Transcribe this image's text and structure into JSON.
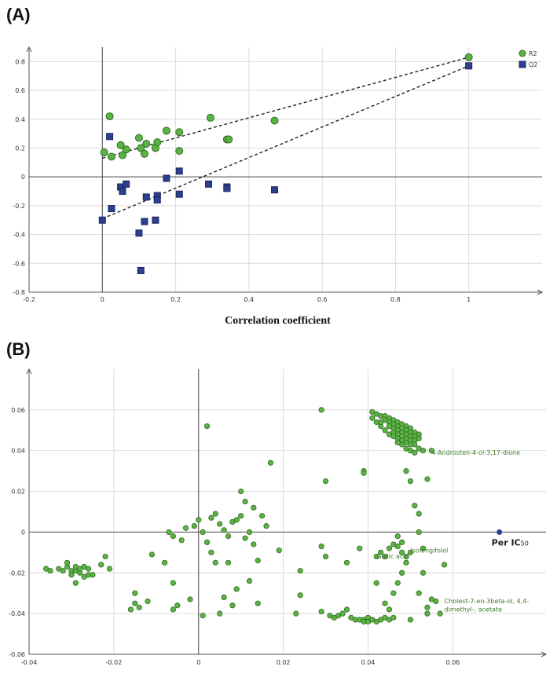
{
  "chart_data": [
    {
      "panel": "(A)",
      "type": "scatter",
      "title": "",
      "xlabel": "Correlation coefficient",
      "ylabel": "",
      "xlim": [
        -0.2,
        1.2
      ],
      "ylim": [
        -0.8,
        0.9
      ],
      "xticks": [
        -0.2,
        0,
        0.2,
        0.4,
        0.6,
        0.8,
        1
      ],
      "xtick_labels": [
        "-0.2",
        "0",
        "0.2",
        "0.4",
        "0.6",
        "0.8",
        "1"
      ],
      "yticks": [
        -0.8,
        -0.6,
        -0.4,
        -0.2,
        0,
        0.2,
        0.4,
        0.6,
        0.8
      ],
      "ytick_labels": [
        "-0.8",
        "-0.6",
        "-0.4",
        "-0.2",
        "0",
        "0.2",
        "0.4",
        "0.6",
        "0.8"
      ],
      "grid": true,
      "legend_position": "top-right",
      "series": [
        {
          "name": "R2",
          "marker": "circle",
          "color": "#5cb345",
          "points": [
            [
              0.005,
              0.17
            ],
            [
              0.02,
              0.42
            ],
            [
              0.025,
              0.14
            ],
            [
              0.05,
              0.22
            ],
            [
              0.055,
              0.15
            ],
            [
              0.065,
              0.19
            ],
            [
              0.1,
              0.27
            ],
            [
              0.105,
              0.2
            ],
            [
              0.115,
              0.16
            ],
            [
              0.12,
              0.23
            ],
            [
              0.145,
              0.2
            ],
            [
              0.15,
              0.24
            ],
            [
              0.175,
              0.32
            ],
            [
              0.21,
              0.31
            ],
            [
              0.21,
              0.18
            ],
            [
              0.295,
              0.41
            ],
            [
              0.34,
              0.26
            ],
            [
              0.345,
              0.26
            ],
            [
              0.47,
              0.39
            ],
            [
              1.0,
              0.83
            ]
          ],
          "fit_line": [
            [
              0,
              0.13
            ],
            [
              1,
              0.83
            ]
          ]
        },
        {
          "name": "Q2",
          "marker": "square",
          "color": "#2e3f8f",
          "points": [
            [
              0.0,
              -0.3
            ],
            [
              0.02,
              0.28
            ],
            [
              0.025,
              -0.22
            ],
            [
              0.05,
              -0.07
            ],
            [
              0.055,
              -0.1
            ],
            [
              0.065,
              -0.05
            ],
            [
              0.1,
              -0.39
            ],
            [
              0.105,
              -0.65
            ],
            [
              0.115,
              -0.31
            ],
            [
              0.12,
              -0.14
            ],
            [
              0.145,
              -0.3
            ],
            [
              0.15,
              -0.13
            ],
            [
              0.15,
              -0.16
            ],
            [
              0.175,
              -0.01
            ],
            [
              0.21,
              0.04
            ],
            [
              0.21,
              -0.12
            ],
            [
              0.29,
              -0.05
            ],
            [
              0.34,
              -0.07
            ],
            [
              0.34,
              -0.08
            ],
            [
              0.47,
              -0.09
            ],
            [
              1.0,
              0.77
            ]
          ],
          "fit_line": [
            [
              0,
              -0.29
            ],
            [
              1,
              0.77
            ]
          ]
        }
      ]
    },
    {
      "panel": "(B)",
      "type": "scatter",
      "title": "",
      "xlabel": "",
      "ylabel": "",
      "xlim": [
        -0.04,
        0.082
      ],
      "ylim": [
        -0.06,
        0.08
      ],
      "xticks": [
        -0.04,
        -0.02,
        0,
        0.02,
        0.04,
        0.06
      ],
      "xtick_labels": [
        "-0.04",
        "-0.02",
        "0",
        "0.02",
        "0.04",
        "0.06"
      ],
      "yticks": [
        -0.06,
        -0.04,
        -0.02,
        0,
        0.02,
        0.04,
        0.06
      ],
      "ytick_labels": [
        "-0.06",
        "-0.04",
        "-0.02",
        "0",
        "0.02",
        "0.04",
        "0.06"
      ],
      "grid": true,
      "series": [
        {
          "name": "compounds",
          "marker": "circle",
          "color": "#5cb345",
          "points": [
            [
              -0.036,
              -0.018
            ],
            [
              -0.035,
              -0.019
            ],
            [
              -0.033,
              -0.018
            ],
            [
              -0.032,
              -0.019
            ],
            [
              -0.031,
              -0.017
            ],
            [
              -0.031,
              -0.015
            ],
            [
              -0.03,
              -0.019
            ],
            [
              -0.03,
              -0.021
            ],
            [
              -0.029,
              -0.019
            ],
            [
              -0.028,
              -0.02
            ],
            [
              -0.028,
              -0.018
            ],
            [
              -0.027,
              -0.017
            ],
            [
              -0.026,
              -0.018
            ],
            [
              -0.029,
              -0.025
            ],
            [
              -0.027,
              -0.022
            ],
            [
              -0.025,
              -0.021
            ],
            [
              -0.026,
              -0.021
            ],
            [
              -0.023,
              -0.016
            ],
            [
              -0.021,
              -0.018
            ],
            [
              -0.022,
              -0.012
            ],
            [
              -0.029,
              -0.017
            ],
            [
              -0.015,
              -0.03
            ],
            [
              -0.015,
              -0.035
            ],
            [
              -0.014,
              -0.037
            ],
            [
              -0.016,
              -0.038
            ],
            [
              -0.012,
              -0.034
            ],
            [
              -0.011,
              -0.011
            ],
            [
              -0.007,
              0.0
            ],
            [
              -0.006,
              -0.002
            ],
            [
              -0.004,
              -0.004
            ],
            [
              -0.003,
              0.002
            ],
            [
              -0.006,
              -0.038
            ],
            [
              -0.005,
              -0.036
            ],
            [
              -0.002,
              -0.033
            ],
            [
              -0.006,
              -0.025
            ],
            [
              -0.008,
              -0.015
            ],
            [
              -0.001,
              0.003
            ],
            [
              0.0,
              0.006
            ],
            [
              0.001,
              0.0
            ],
            [
              0.002,
              -0.005
            ],
            [
              0.003,
              -0.01
            ],
            [
              0.001,
              -0.041
            ],
            [
              0.002,
              0.052
            ],
            [
              0.003,
              0.007
            ],
            [
              0.004,
              0.009
            ],
            [
              0.005,
              0.004
            ],
            [
              0.006,
              0.001
            ],
            [
              0.007,
              -0.002
            ],
            [
              0.008,
              0.005
            ],
            [
              0.009,
              0.006
            ],
            [
              0.01,
              0.008
            ],
            [
              0.011,
              -0.003
            ],
            [
              0.012,
              0.0
            ],
            [
              0.013,
              -0.006
            ],
            [
              0.014,
              -0.014
            ],
            [
              0.012,
              -0.024
            ],
            [
              0.01,
              0.02
            ],
            [
              0.011,
              0.015
            ],
            [
              0.013,
              0.012
            ],
            [
              0.015,
              0.008
            ],
            [
              0.016,
              0.003
            ],
            [
              0.017,
              0.034
            ],
            [
              0.019,
              -0.009
            ],
            [
              0.014,
              -0.035
            ],
            [
              0.009,
              -0.028
            ],
            [
              0.008,
              -0.036
            ],
            [
              0.006,
              -0.032
            ],
            [
              0.005,
              -0.04
            ],
            [
              0.004,
              -0.015
            ],
            [
              0.007,
              -0.015
            ],
            [
              0.029,
              0.06
            ],
            [
              0.03,
              0.025
            ],
            [
              0.023,
              -0.04
            ],
            [
              0.024,
              -0.031
            ],
            [
              0.024,
              -0.019
            ],
            [
              0.029,
              -0.039
            ],
            [
              0.029,
              -0.007
            ],
            [
              0.03,
              -0.012
            ],
            [
              0.031,
              -0.041
            ],
            [
              0.032,
              -0.042
            ],
            [
              0.033,
              -0.041
            ],
            [
              0.034,
              -0.04
            ],
            [
              0.035,
              -0.038
            ],
            [
              0.035,
              -0.015
            ],
            [
              0.036,
              -0.042
            ],
            [
              0.037,
              -0.043
            ],
            [
              0.038,
              -0.043
            ],
            [
              0.039,
              -0.043
            ],
            [
              0.039,
              -0.044
            ],
            [
              0.04,
              -0.042
            ],
            [
              0.04,
              -0.044
            ],
            [
              0.041,
              -0.043
            ],
            [
              0.042,
              -0.044
            ],
            [
              0.043,
              -0.043
            ],
            [
              0.044,
              -0.042
            ],
            [
              0.045,
              -0.043
            ],
            [
              0.046,
              -0.042
            ],
            [
              0.044,
              -0.035
            ],
            [
              0.045,
              -0.038
            ],
            [
              0.046,
              -0.03
            ],
            [
              0.047,
              -0.025
            ],
            [
              0.048,
              -0.02
            ],
            [
              0.049,
              -0.015
            ],
            [
              0.05,
              -0.043
            ],
            [
              0.039,
              0.03
            ],
            [
              0.039,
              0.029
            ],
            [
              0.038,
              -0.008
            ],
            [
              0.042,
              -0.025
            ],
            [
              0.042,
              -0.012
            ],
            [
              0.043,
              -0.01
            ],
            [
              0.044,
              -0.012
            ],
            [
              0.045,
              -0.008
            ],
            [
              0.046,
              -0.006
            ],
            [
              0.047,
              -0.007
            ],
            [
              0.048,
              -0.01
            ],
            [
              0.049,
              -0.012
            ],
            [
              0.05,
              -0.01
            ],
            [
              0.047,
              -0.002
            ],
            [
              0.048,
              -0.005
            ],
            [
              0.049,
              0.03
            ],
            [
              0.05,
              0.025
            ],
            [
              0.051,
              0.013
            ],
            [
              0.052,
              0.009
            ],
            [
              0.053,
              -0.008
            ],
            [
              0.052,
              0.0
            ],
            [
              0.053,
              -0.02
            ],
            [
              0.052,
              -0.03
            ],
            [
              0.054,
              -0.037
            ],
            [
              0.055,
              -0.033
            ],
            [
              0.056,
              -0.034
            ],
            [
              0.057,
              -0.04
            ],
            [
              0.058,
              -0.016
            ],
            [
              0.054,
              0.026
            ],
            [
              0.054,
              -0.04
            ],
            [
              0.041,
              0.059
            ],
            [
              0.042,
              0.058
            ],
            [
              0.043,
              0.057
            ],
            [
              0.044,
              0.057
            ],
            [
              0.045,
              0.056
            ],
            [
              0.046,
              0.055
            ],
            [
              0.047,
              0.054
            ],
            [
              0.048,
              0.053
            ],
            [
              0.049,
              0.052
            ],
            [
              0.05,
              0.051
            ],
            [
              0.051,
              0.049
            ],
            [
              0.052,
              0.048
            ],
            [
              0.044,
              0.055
            ],
            [
              0.045,
              0.054
            ],
            [
              0.046,
              0.053
            ],
            [
              0.047,
              0.052
            ],
            [
              0.048,
              0.051
            ],
            [
              0.049,
              0.05
            ],
            [
              0.05,
              0.049
            ],
            [
              0.051,
              0.047
            ],
            [
              0.052,
              0.046
            ],
            [
              0.045,
              0.052
            ],
            [
              0.046,
              0.051
            ],
            [
              0.047,
              0.05
            ],
            [
              0.048,
              0.049
            ],
            [
              0.049,
              0.048
            ],
            [
              0.05,
              0.047
            ],
            [
              0.051,
              0.045
            ],
            [
              0.046,
              0.049
            ],
            [
              0.047,
              0.048
            ],
            [
              0.048,
              0.047
            ],
            [
              0.049,
              0.046
            ],
            [
              0.05,
              0.045
            ],
            [
              0.051,
              0.043
            ],
            [
              0.047,
              0.046
            ],
            [
              0.048,
              0.045
            ],
            [
              0.049,
              0.044
            ],
            [
              0.05,
              0.043
            ],
            [
              0.049,
              0.041
            ],
            [
              0.05,
              0.04
            ],
            [
              0.051,
              0.039
            ],
            [
              0.052,
              0.041
            ],
            [
              0.053,
              0.04
            ],
            [
              0.055,
              0.04
            ],
            [
              0.042,
              0.054
            ],
            [
              0.041,
              0.056
            ],
            [
              0.043,
              0.052
            ],
            [
              0.044,
              0.05
            ],
            [
              0.046,
              0.047
            ],
            [
              0.048,
              0.043
            ],
            [
              0.047,
              0.044
            ],
            [
              0.045,
              0.048
            ],
            [
              0.043,
              0.054
            ]
          ]
        },
        {
          "name": "Per IC50",
          "marker": "circle",
          "color": "#2a3fa0",
          "points": [
            [
              0.071,
              0.0
            ]
          ]
        }
      ],
      "annotations": [
        {
          "text": "4-Androsten-4-ol-3,17-dione",
          "x": 0.055,
          "y": 0.038
        },
        {
          "text": "Isolongifolol",
          "x": 0.05,
          "y": -0.01
        },
        {
          "text": "Gallic acid",
          "x": 0.042,
          "y": -0.013
        },
        {
          "text": "Cholest-7-en-3beta-ol, 4,4-",
          "x": 0.058,
          "y": -0.035
        },
        {
          "text": "dimethyl-, acetate",
          "x": 0.058,
          "y": -0.039
        }
      ],
      "highlight_label": {
        "text": "Per IC50",
        "main": "Per IC",
        "sub": "50"
      }
    }
  ]
}
